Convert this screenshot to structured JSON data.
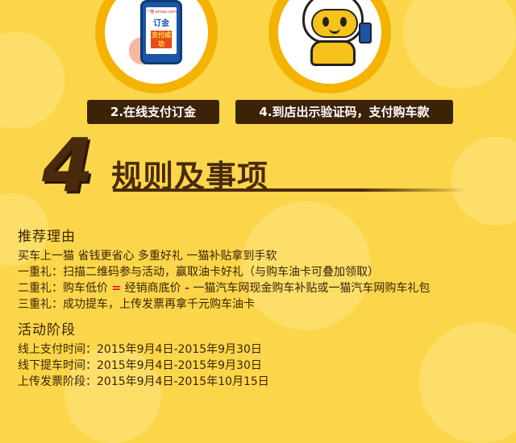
{
  "colors": {
    "background": "#fbd64a",
    "accent_dark": "#3d2208",
    "accent_red": "#e6003b",
    "text": "#3a2408"
  },
  "steps": {
    "step2_label": "2.在线支付订金",
    "step4_label": "4.到店出示验证码，支付购车款",
    "phone": {
      "brand": "一猫 emao.com",
      "order": "订金",
      "paid": "支付成功"
    }
  },
  "rules": {
    "number": "4",
    "title": "规则及事项"
  },
  "reasons": {
    "title": "推荐理由",
    "intro": "买车上一猫 省钱更省心 多重好礼 一猫补贴拿到手软",
    "items": [
      {
        "label": "一重礼：",
        "text": "扫描二维码参与活动，赢取油卡好礼（与购车油卡可叠加领取）"
      },
      {
        "label": "二重礼：",
        "text_before": "购车低价",
        "symbol_eq": "=",
        "text_mid": "经销商底价",
        "symbol_minus": "-",
        "text_after": "一猫汽车网现金购车补贴或一猫汽车网购车礼包"
      },
      {
        "label": "三重礼：",
        "text": "成功提车，上传发票再拿千元购车油卡"
      }
    ]
  },
  "phases": {
    "title": "活动阶段",
    "items": [
      {
        "label": "线上支付时间：",
        "value": "2015年9月4日-2015年9月30日"
      },
      {
        "label": "线下提车时间：",
        "value": "2015年9月4日-2015年9月30日"
      },
      {
        "label": "上传发票阶段：",
        "value": "2015年9月4日-2015年10月15日"
      }
    ]
  }
}
